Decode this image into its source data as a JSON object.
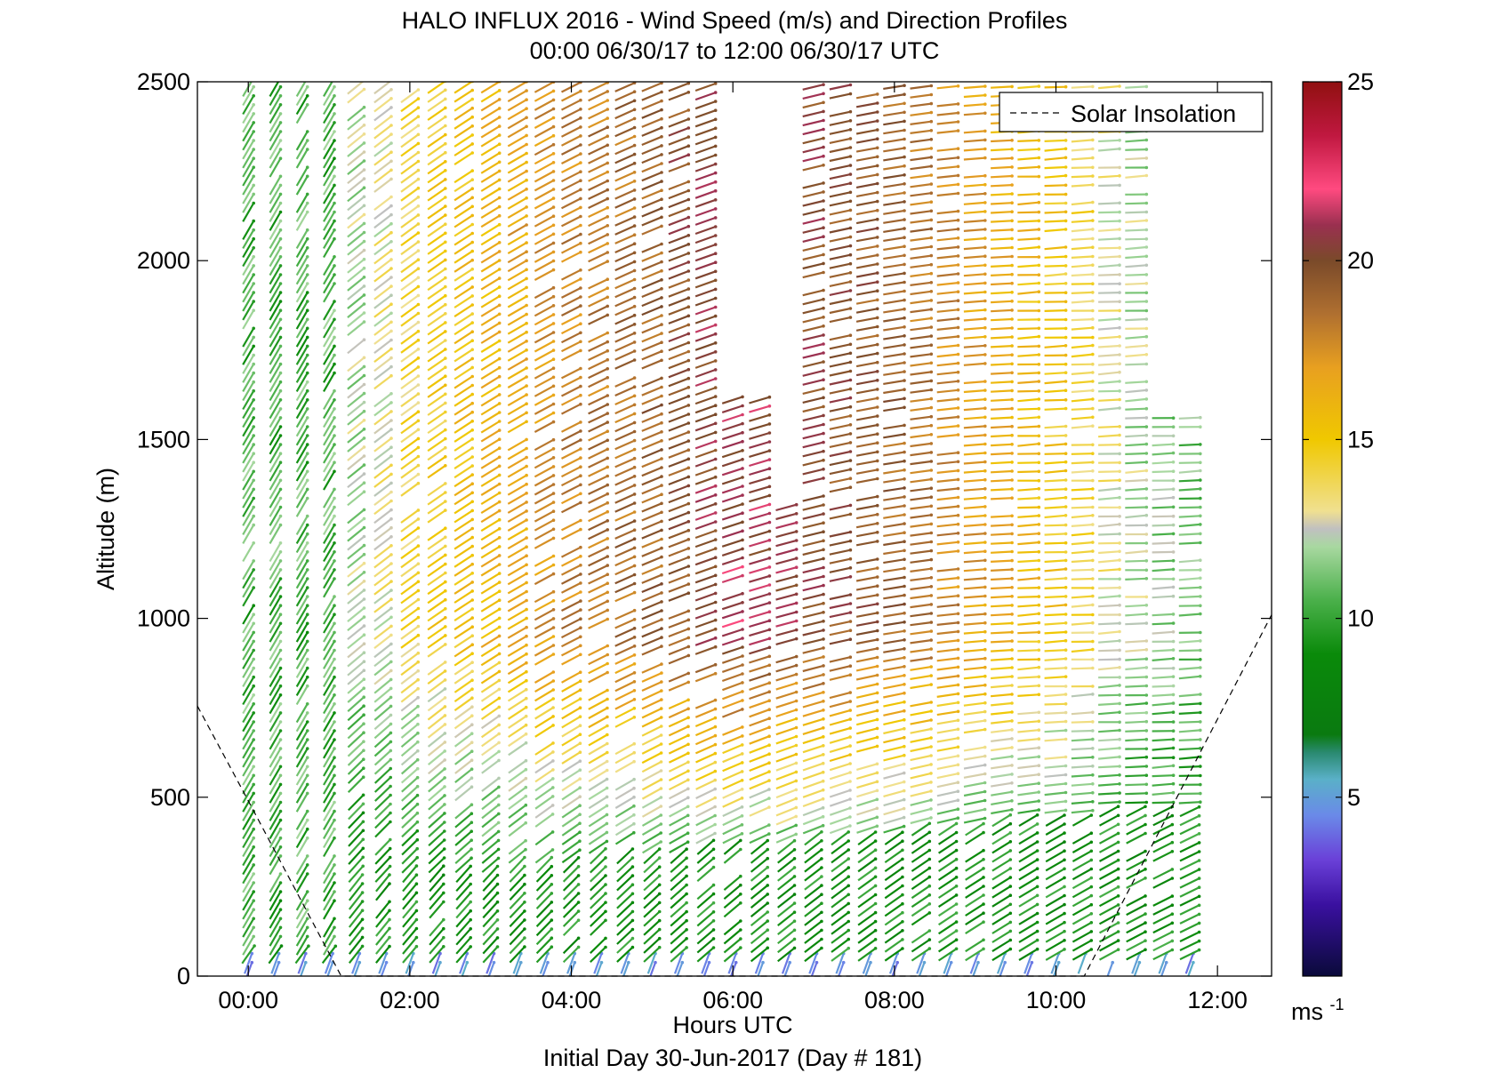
{
  "chart_data": {
    "type": "vector-field",
    "title": "HALO INFLUX 2016 - Wind Speed (m/s) and Direction Profiles",
    "subtitle": "00:00 06/30/17 to 12:00 06/30/17  UTC",
    "xlabel": "Hours UTC",
    "ylabel": "Altitude (m)",
    "footer": "Initial Day 30-Jun-2017 (Day # 181)",
    "x_tick_labels": [
      "00:00",
      "02:00",
      "04:00",
      "06:00",
      "08:00",
      "10:00",
      "12:00"
    ],
    "x_tick_values": [
      0,
      2,
      4,
      6,
      8,
      10,
      12
    ],
    "y_tick_labels": [
      "0",
      "500",
      "1000",
      "1500",
      "2000",
      "2500"
    ],
    "y_tick_values": [
      0,
      500,
      1000,
      1500,
      2000,
      2500
    ],
    "xlim": [
      -0.63,
      12.67
    ],
    "ylim": [
      0,
      2500
    ],
    "legend": {
      "entries": [
        "Solar Insolation"
      ],
      "position": "top-right"
    },
    "colorbar": {
      "unit_base": "ms",
      "unit_exp": "-1",
      "tick_labels": [
        "5",
        "10",
        "15",
        "20",
        "25"
      ],
      "tick_values": [
        5,
        10,
        15,
        20,
        25
      ],
      "range": [
        0,
        25
      ]
    },
    "solar_insolation": {
      "x": [
        -0.63,
        0.0,
        1.15,
        10.35,
        12.67
      ],
      "y": [
        755,
        490,
        0,
        0,
        1010
      ]
    },
    "wind_speed_profile": {
      "description_hours": [
        0,
        1,
        2,
        3,
        4,
        5,
        6,
        7,
        8,
        9,
        10,
        11,
        11.7
      ],
      "speed_near_surface_ms": 4,
      "speed_boundary_layer_ms": 9,
      "speed_aloft_ms": [
        10,
        11,
        14,
        16,
        18,
        19,
        21,
        20,
        19,
        17,
        15,
        12,
        11
      ]
    }
  }
}
